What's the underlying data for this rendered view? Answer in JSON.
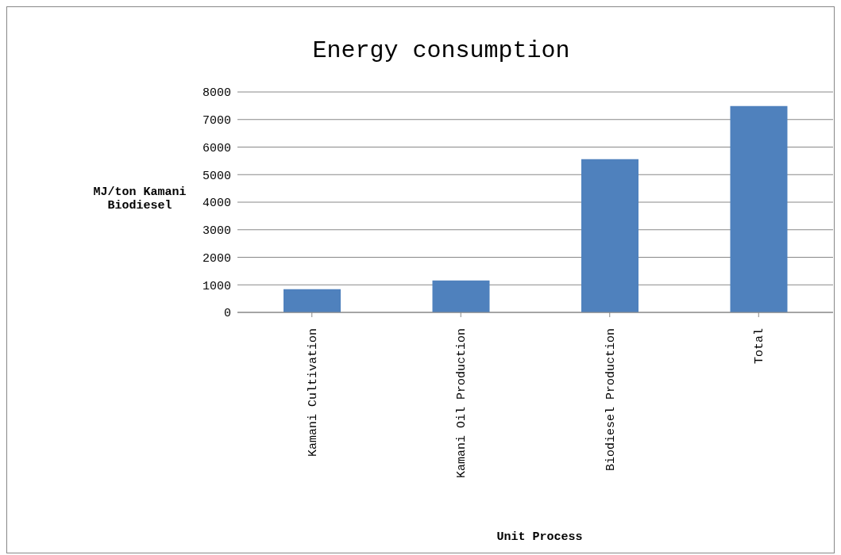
{
  "chart_data": {
    "type": "bar",
    "title": "Energy consumption",
    "xlabel": "Unit Process",
    "ylabel": "MJ/ton Kamani Biodiesel",
    "categories": [
      "Kamani Cultivation",
      "Kamani Oil Production",
      "Biodiesel Production",
      "Total"
    ],
    "values": [
      840,
      1160,
      5560,
      7490
    ],
    "color": "#4f81bd",
    "ylim": [
      0,
      8000
    ],
    "yticks": [
      0,
      1000,
      2000,
      3000,
      4000,
      5000,
      6000,
      7000,
      8000
    ],
    "grid": "y",
    "legend": false
  }
}
